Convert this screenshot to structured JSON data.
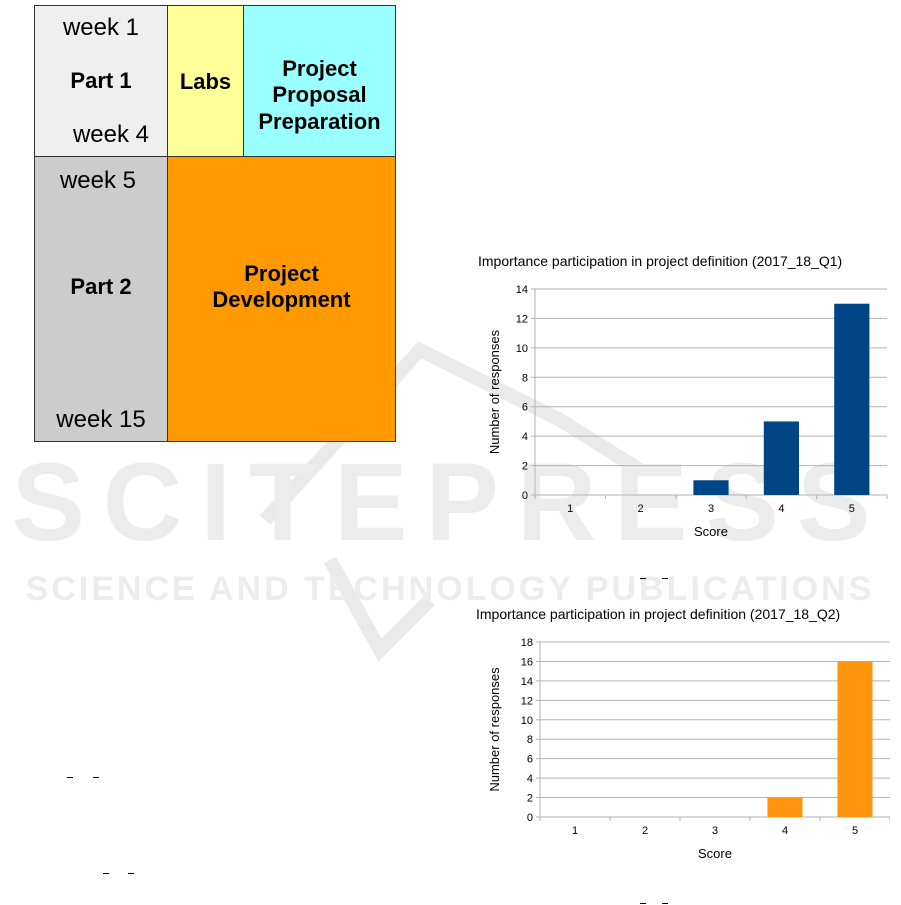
{
  "watermark": {
    "line1": "SCITEPRESS",
    "line2": "SCIENCE AND TECHNOLOGY PUBLICATIONS"
  },
  "schedule": {
    "part1": {
      "label": "Part 1",
      "week_start": "week 1",
      "week_end": "week 4",
      "labs": "Labs",
      "proposal_line1": "Project",
      "proposal_line2": "Proposal",
      "proposal_line3": "Preparation"
    },
    "part2": {
      "label": "Part 2",
      "week_start": "week 5",
      "week_end": "week 15",
      "development_line1": "Project",
      "development_line2": "Development"
    },
    "colors": {
      "part1_bg": "#efefef",
      "part2_bg": "#cccccc",
      "labs_bg": "#ffff99",
      "proposal_bg": "#99ffff",
      "development_bg": "#ff9900"
    }
  },
  "chart_data": [
    {
      "type": "bar",
      "title": "Importance participation in project definition (2017_18_Q1)",
      "xlabel": "Score",
      "ylabel": "Number of responses",
      "categories": [
        "1",
        "2",
        "3",
        "4",
        "5"
      ],
      "values": [
        0,
        0,
        1,
        5,
        13
      ],
      "ylim": [
        0,
        14
      ],
      "yticks": [
        "0",
        "2",
        "4",
        "6",
        "8",
        "10",
        "12",
        "14"
      ],
      "color": "#004586",
      "grid": true
    },
    {
      "type": "bar",
      "title": "Importance participation in project definition (2017_18_Q2)",
      "xlabel": "Score",
      "ylabel": "Number of responses",
      "categories": [
        "1",
        "2",
        "3",
        "4",
        "5"
      ],
      "values": [
        0,
        0,
        0,
        2,
        16
      ],
      "ylim": [
        0,
        18
      ],
      "yticks": [
        "0",
        "2",
        "4",
        "6",
        "8",
        "10",
        "12",
        "14",
        "16",
        "18"
      ],
      "color": "#ff950e",
      "grid": true
    }
  ]
}
